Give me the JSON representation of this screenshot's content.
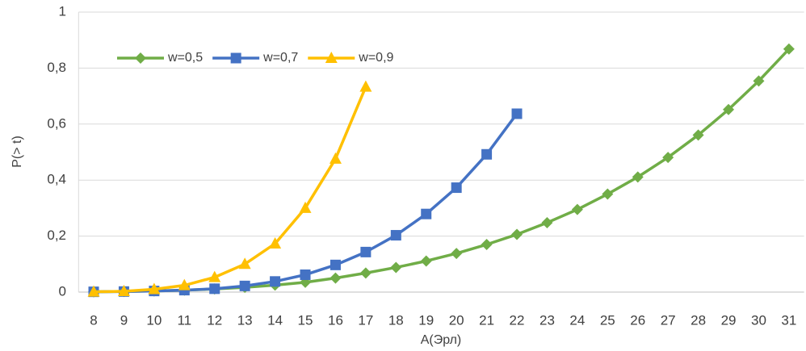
{
  "chart_data": {
    "type": "line",
    "x_label": "A(Эрл)",
    "y_label": "P(> t)",
    "categories": [
      8,
      9,
      10,
      11,
      12,
      13,
      14,
      15,
      16,
      17,
      18,
      19,
      20,
      21,
      22,
      23,
      24,
      25,
      26,
      27,
      28,
      29,
      30,
      31
    ],
    "series": [
      {
        "name": "w=0,5",
        "color": "#70ad47",
        "marker": "diamond",
        "values": [
          0.001,
          0.002,
          0.004,
          0.007,
          0.011,
          0.017,
          0.025,
          0.035,
          0.05,
          0.068,
          0.088,
          0.111,
          0.138,
          0.17,
          0.206,
          0.248,
          0.295,
          0.35,
          0.411,
          0.481,
          0.561,
          0.652,
          0.754,
          0.868
        ]
      },
      {
        "name": "w=0,7",
        "color": "#4472c4",
        "marker": "square",
        "values": [
          0.001,
          0.002,
          0.004,
          0.007,
          0.012,
          0.022,
          0.038,
          0.062,
          0.097,
          0.143,
          0.203,
          0.279,
          0.373,
          0.492,
          0.637,
          null,
          null,
          null,
          null,
          null,
          null,
          null,
          null,
          null
        ]
      },
      {
        "name": "w=0,9",
        "color": "#ffc000",
        "marker": "triangle",
        "values": [
          0.001,
          0.003,
          0.01,
          0.024,
          0.053,
          0.1,
          0.173,
          0.3,
          0.476,
          0.733,
          null,
          null,
          null,
          null,
          null,
          null,
          null,
          null,
          null,
          null,
          null,
          null,
          null,
          null
        ]
      }
    ],
    "ylim": [
      0,
      1
    ],
    "yticks": [
      0,
      {
        "value": 0.2,
        "label": "0,2"
      },
      {
        "value": 0.4,
        "label": "0,4"
      },
      {
        "value": 0.6,
        "label": "0,6"
      },
      {
        "value": 0.8,
        "label": "0,8"
      },
      1
    ],
    "grid": true
  }
}
